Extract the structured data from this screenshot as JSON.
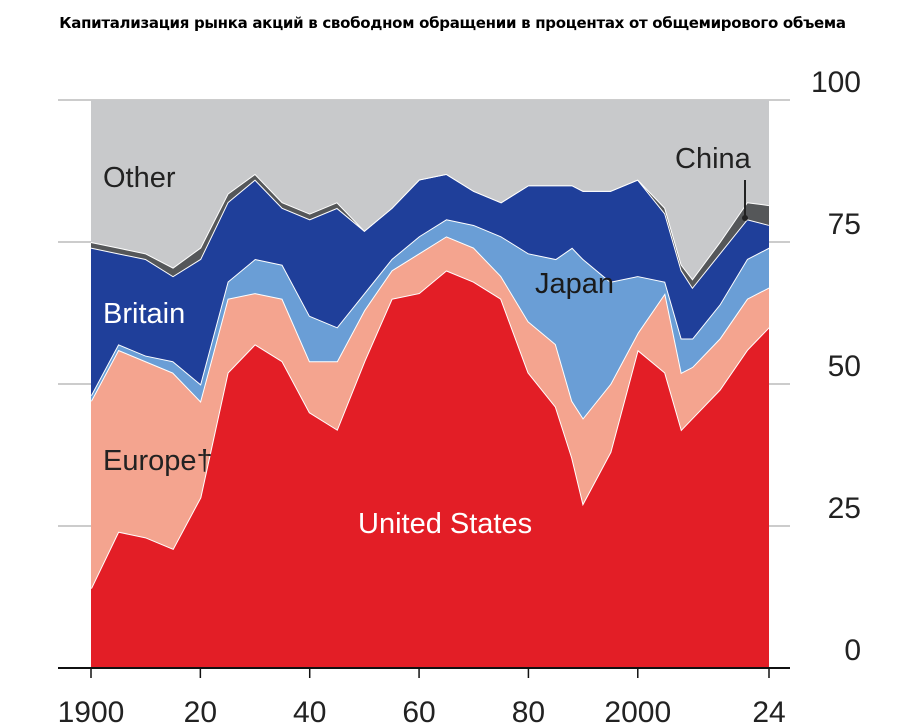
{
  "title": "Капитализация рынка акций в свободном обращении в процентах от общемирового объема",
  "chart_data": {
    "type": "area",
    "stacked": true,
    "title": "Капитализация рынка акций в свободном обращении в процентах от общемирового объема",
    "xlabel": "",
    "ylabel": "",
    "xlim": [
      1900,
      2024
    ],
    "ylim": [
      0,
      100
    ],
    "x_tick_labels": [
      "1900",
      "20",
      "40",
      "60",
      "80",
      "2000",
      "24"
    ],
    "x_tick_values": [
      1900,
      1920,
      1940,
      1960,
      1980,
      2000,
      2024
    ],
    "y_tick_labels": [
      "0",
      "25",
      "50",
      "75",
      "100"
    ],
    "y_tick_values": [
      0,
      25,
      50,
      75,
      100
    ],
    "grid": true,
    "x": [
      1900,
      1905,
      1910,
      1915,
      1920,
      1925,
      1930,
      1935,
      1940,
      1945,
      1950,
      1955,
      1960,
      1965,
      1970,
      1975,
      1980,
      1985,
      1988,
      1990,
      1995,
      2000,
      2005,
      2008,
      2010,
      2015,
      2020,
      2024
    ],
    "series": [
      {
        "name": "United States",
        "label": "United States",
        "color": "#e31e26",
        "values": [
          14,
          24,
          23,
          21,
          30,
          52,
          57,
          54,
          45,
          42,
          54,
          65,
          66,
          70,
          68,
          65,
          52,
          46,
          37,
          29,
          38,
          56,
          52,
          42,
          44,
          49,
          56,
          60
        ]
      },
      {
        "name": "Europe",
        "label": "Europe†",
        "color": "#f4a48f",
        "values": [
          33,
          32,
          31,
          31,
          17,
          13,
          9,
          11,
          9,
          12,
          9,
          5,
          7,
          6,
          6,
          4,
          9,
          11,
          10,
          15,
          12,
          3,
          14,
          10,
          9,
          9,
          9,
          7
        ]
      },
      {
        "name": "Japan",
        "label": "Japan",
        "color": "#6a9ed6",
        "values": [
          1,
          1,
          1,
          2,
          3,
          3,
          6,
          6,
          8,
          6,
          3,
          2,
          3,
          3,
          4,
          7,
          12,
          15,
          27,
          28,
          18,
          10,
          2,
          6,
          5,
          6,
          7,
          7
        ]
      },
      {
        "name": "Britain",
        "label": "Britain",
        "color": "#1f3f9a",
        "values": [
          26,
          16,
          17,
          15,
          22,
          14,
          14,
          10,
          17,
          21,
          11,
          9,
          10,
          8,
          6,
          6,
          12,
          13,
          11,
          12,
          16,
          17,
          12,
          12,
          9,
          9,
          7,
          4
        ]
      },
      {
        "name": "China",
        "label": "China",
        "color": "#555759",
        "values": [
          1,
          1,
          1,
          1.5,
          2,
          1.5,
          1,
          1,
          1,
          1,
          0,
          0,
          0,
          0,
          0,
          0,
          0,
          0,
          0,
          0,
          0,
          0,
          1,
          1,
          1.5,
          2,
          3,
          3.5
        ]
      },
      {
        "name": "Other",
        "label": "Other",
        "color": "#c8c9cb",
        "values": null
      }
    ]
  }
}
